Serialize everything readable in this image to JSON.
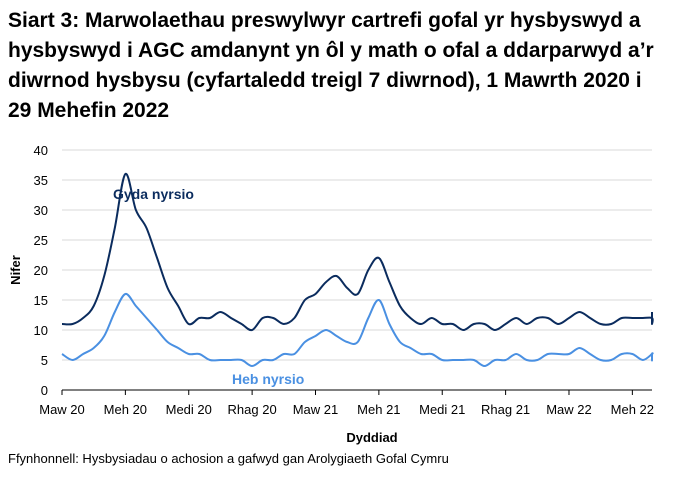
{
  "chart_data": {
    "type": "line",
    "title": "Siart 3: Marwolaethau preswylwyr cartrefi gofal yr hysbyswyd a hysbyswyd i AGC amdanynt yn ôl y math o ofal a ddarparwyd a’r diwrnod hysbysu (cyfartaledd treigl 7 diwrnod), 1 Mawrth 2020 i 29 Mehefin 2022",
    "xlabel": "Dyddiad",
    "ylabel": "Nifer",
    "ylim": [
      0,
      40
    ],
    "yticks": [
      0,
      5,
      10,
      15,
      20,
      25,
      30,
      35,
      40
    ],
    "xticks": [
      {
        "label": "Maw 20",
        "month_index": 0
      },
      {
        "label": "Meh 20",
        "month_index": 3
      },
      {
        "label": "Medi 20",
        "month_index": 6
      },
      {
        "label": "Rhag 20",
        "month_index": 9
      },
      {
        "label": "Maw 21",
        "month_index": 12
      },
      {
        "label": "Meh 21",
        "month_index": 15
      },
      {
        "label": "Medi 21",
        "month_index": 18
      },
      {
        "label": "Rhag 21",
        "month_index": 21
      },
      {
        "label": "Maw 22",
        "month_index": 24
      },
      {
        "label": "Meh 22",
        "month_index": 27
      }
    ],
    "x_month_range": [
      0,
      27.93
    ],
    "x_month_step": 0.5,
    "grid": true,
    "series": [
      {
        "name": "Gyda nyrsio",
        "color": "#0b2c5e",
        "values": [
          11,
          11,
          12,
          14,
          19,
          27,
          36,
          30,
          27,
          22,
          17,
          14,
          11,
          12,
          12,
          13,
          12,
          11,
          10,
          12,
          12,
          11,
          12,
          15,
          16,
          18,
          19,
          17,
          16,
          20,
          22,
          18,
          14,
          12,
          11,
          12,
          11,
          11,
          10,
          11,
          11,
          10,
          11,
          12,
          11,
          12,
          12,
          11,
          12,
          13,
          12,
          11,
          11,
          12,
          12,
          12,
          12,
          11,
          12,
          13
        ]
      },
      {
        "name": "Heb nyrsio",
        "color": "#4a90e2",
        "values": [
          6,
          5,
          6,
          7,
          9,
          13,
          16,
          14,
          12,
          10,
          8,
          7,
          6,
          6,
          5,
          5,
          5,
          5,
          4,
          5,
          5,
          6,
          6,
          8,
          9,
          10,
          9,
          8,
          8,
          12,
          15,
          11,
          8,
          7,
          6,
          6,
          5,
          5,
          5,
          5,
          4,
          5,
          5,
          6,
          5,
          5,
          6,
          6,
          6,
          7,
          6,
          5,
          5,
          6,
          6,
          5,
          6,
          6,
          5,
          5
        ]
      }
    ],
    "annotations": [
      {
        "text": "Gyda nyrsio",
        "series": "Gyda nyrsio"
      },
      {
        "text": "Heb nyrsio",
        "series": "Heb nyrsio"
      }
    ]
  },
  "source_note": "Ffynhonnell: Hysbysiadau o achosion a gafwyd gan Arolygiaeth Gofal Cymru"
}
